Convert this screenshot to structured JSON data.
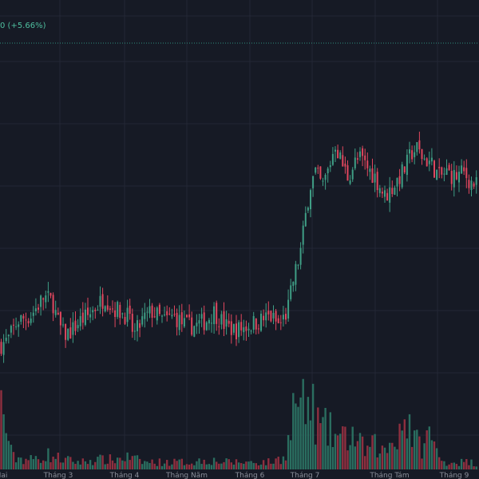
{
  "header": {
    "change_text": "0 (+5.66%)"
  },
  "colors": {
    "background": "#161a25",
    "grid": "#232735",
    "up": "#3f9e85",
    "down": "#e0475e",
    "up_volume": "#2a6e60",
    "down_volume": "#8e2f3f",
    "reference_line": "#2f8f7d",
    "axis_text": "#8b8f9a"
  },
  "chart_data": {
    "type": "candlestick",
    "title": "",
    "xlabel": "",
    "ylabel": "",
    "x_tick_labels": [
      "Hai",
      "Tháng 3",
      "Tháng 4",
      "Tháng Năm",
      "Tháng 6",
      "Tháng 7",
      "Tháng Tám",
      "Tháng 9"
    ],
    "x_tick_bar_index": [
      2,
      73,
      156,
      234,
      313,
      382,
      488,
      569
    ],
    "price_range": [
      0,
      100
    ],
    "reference_price": 91,
    "grid": true,
    "legend": "none",
    "close_path": [
      [
        0,
        28
      ],
      [
        10,
        29
      ],
      [
        22,
        33
      ],
      [
        38,
        34
      ],
      [
        55,
        38
      ],
      [
        66,
        37
      ],
      [
        72,
        33
      ],
      [
        80,
        30
      ],
      [
        90,
        31
      ],
      [
        100,
        33
      ],
      [
        110,
        34
      ],
      [
        120,
        36
      ],
      [
        132,
        38
      ],
      [
        140,
        36
      ],
      [
        150,
        35
      ],
      [
        160,
        34
      ],
      [
        168,
        30
      ],
      [
        178,
        33
      ],
      [
        190,
        35
      ],
      [
        205,
        33
      ],
      [
        218,
        34
      ],
      [
        232,
        32
      ],
      [
        245,
        32
      ],
      [
        258,
        33
      ],
      [
        268,
        35
      ],
      [
        282,
        32
      ],
      [
        295,
        31
      ],
      [
        310,
        32
      ],
      [
        325,
        33
      ],
      [
        338,
        34
      ],
      [
        350,
        32
      ],
      [
        360,
        35
      ],
      [
        368,
        42
      ],
      [
        376,
        47
      ],
      [
        382,
        54
      ],
      [
        388,
        61
      ],
      [
        395,
        64
      ],
      [
        404,
        61
      ],
      [
        412,
        65
      ],
      [
        420,
        70
      ],
      [
        428,
        66
      ],
      [
        436,
        63
      ],
      [
        444,
        66
      ],
      [
        452,
        67
      ],
      [
        460,
        65
      ],
      [
        470,
        63
      ],
      [
        482,
        59
      ],
      [
        492,
        61
      ],
      [
        500,
        63
      ],
      [
        508,
        65
      ],
      [
        515,
        68
      ],
      [
        522,
        69
      ],
      [
        530,
        67
      ],
      [
        540,
        66
      ],
      [
        550,
        63
      ],
      [
        560,
        64
      ],
      [
        570,
        63
      ],
      [
        580,
        64
      ],
      [
        590,
        62
      ],
      [
        600,
        61
      ]
    ],
    "volume_path": [
      [
        0,
        0.28
      ],
      [
        8,
        0.17
      ],
      [
        15,
        0.05
      ],
      [
        40,
        0.04
      ],
      [
        60,
        0.06
      ],
      [
        80,
        0.04
      ],
      [
        100,
        0.03
      ],
      [
        120,
        0.04
      ],
      [
        140,
        0.04
      ],
      [
        160,
        0.05
      ],
      [
        180,
        0.03
      ],
      [
        200,
        0.03
      ],
      [
        220,
        0.03
      ],
      [
        240,
        0.03
      ],
      [
        260,
        0.04
      ],
      [
        280,
        0.03
      ],
      [
        300,
        0.03
      ],
      [
        320,
        0.03
      ],
      [
        340,
        0.03
      ],
      [
        355,
        0.05
      ],
      [
        362,
        0.12
      ],
      [
        370,
        0.3
      ],
      [
        380,
        0.24
      ],
      [
        390,
        0.26
      ],
      [
        400,
        0.17
      ],
      [
        410,
        0.16
      ],
      [
        420,
        0.14
      ],
      [
        430,
        0.12
      ],
      [
        440,
        0.15
      ],
      [
        450,
        0.1
      ],
      [
        460,
        0.08
      ],
      [
        470,
        0.1
      ],
      [
        480,
        0.07
      ],
      [
        490,
        0.11
      ],
      [
        500,
        0.17
      ],
      [
        510,
        0.22
      ],
      [
        520,
        0.11
      ],
      [
        530,
        0.1
      ],
      [
        540,
        0.15
      ],
      [
        550,
        0.04
      ],
      [
        560,
        0.03
      ],
      [
        570,
        0.03
      ],
      [
        580,
        0.03
      ],
      [
        590,
        0.03
      ],
      [
        600,
        0.02
      ]
    ]
  }
}
